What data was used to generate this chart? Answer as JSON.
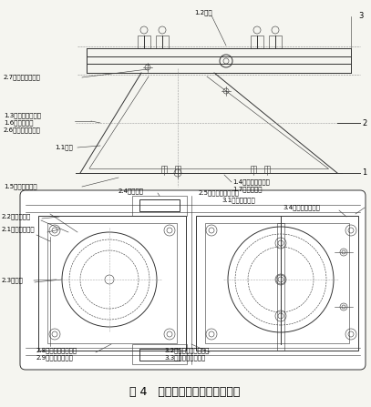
{
  "title": "图 4   双法兰液位变送器检定装置",
  "title_fontsize": 9,
  "bg_color": "#f5f5f0",
  "line_color": "#333333",
  "labels": {
    "1_2": "1.2轴承",
    "3": "3",
    "2": "2",
    "1": "1",
    "2_7": "2.7第二垂直定位孔",
    "1_3": "1.3第一水平定位孔",
    "1_6": "1.6水平定位销",
    "2_6": "2.6第二水平定位孔",
    "1_1": "1.1机座",
    "1_5": "1.5机座调平螺杆",
    "1_4": "1.4第一垂直定位孔",
    "1_7": "1.7垂直定位销",
    "2_4": "2.4轴承螺杆",
    "2_5": "2.5上法兰位置调整槽",
    "3_1": "3.1上法兰定位槽",
    "3_4": "3.4上法兰固定螺杆",
    "2_2": "2.2下法兰压杆",
    "2_1": "2.1下法兰定位槽",
    "2_3": "2.3检定孔",
    "2_8": "2.8下法兰压扣螺栓孔",
    "2_9": "2.9下法兰夹紧螺杆",
    "3_2": "3.2上法兰安装板螺栓孔",
    "3_3": "3.3上法兰安装板螺杆"
  },
  "font_size": 5.0
}
